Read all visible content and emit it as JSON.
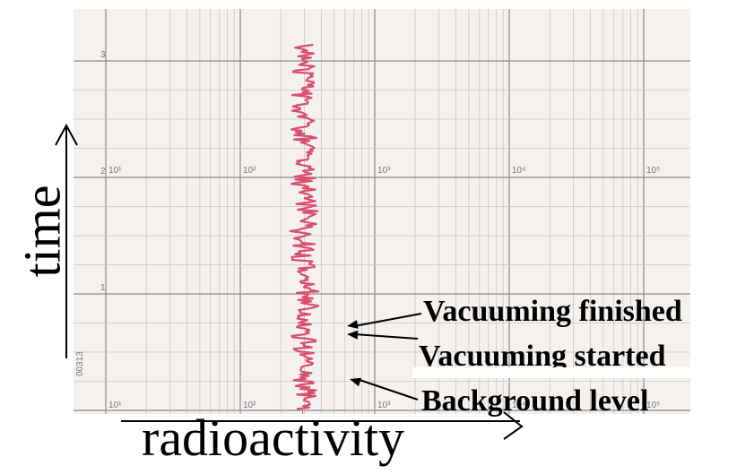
{
  "chart_data": {
    "type": "line",
    "title": "",
    "xlabel": "radioactivity",
    "ylabel": "time",
    "x_scale": "log",
    "xlim": [
      10,
      100000
    ],
    "x_tick_labels": [
      "10¹",
      "10²",
      "10³",
      "10⁴",
      "10⁵"
    ],
    "y_tick_labels": [
      "1",
      "2",
      "3"
    ],
    "ylim": [
      0,
      3.2
    ],
    "grid": true,
    "series": [
      {
        "color": "#d94f6e",
        "center_x": 300,
        "y_range": [
          0,
          3.15
        ]
      }
    ],
    "annotations": [
      {
        "text": "Vacuuming finished"
      },
      {
        "text": "Vacuuming started"
      },
      {
        "text": "Background level"
      }
    ]
  },
  "side_texts": {
    "left_code": "00313"
  },
  "colors": {
    "paper": "#f4f1ef",
    "grid_major": "#8a8a8a",
    "grid_minor": "#c9c6c4",
    "trace": "#d94f6e",
    "arrow": "#000000"
  },
  "icons": {
    "time_arrow": "arrow-up-icon",
    "x_arrow": "arrow-right-icon"
  }
}
